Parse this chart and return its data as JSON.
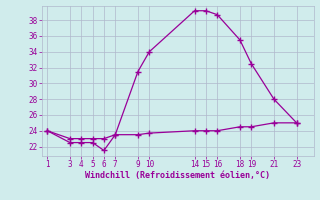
{
  "x": [
    1,
    3,
    4,
    5,
    6,
    7,
    9,
    10,
    14,
    15,
    16,
    18,
    19,
    21,
    23
  ],
  "y_main": [
    24,
    22.5,
    22.5,
    22.5,
    21.5,
    23.5,
    31.5,
    34,
    39.2,
    39.2,
    38.7,
    35.5,
    32.5,
    28,
    25
  ],
  "y_flat": [
    24,
    23,
    23,
    23,
    23,
    23.5,
    23.5,
    23.7,
    24,
    24,
    24,
    24.5,
    24.5,
    25,
    25
  ],
  "line_color": "#990099",
  "bg_color": "#d0ecec",
  "grid_color": "#b0b8cc",
  "xlabel": "Windchill (Refroidissement éolien,°C)",
  "xticks": [
    1,
    3,
    4,
    5,
    6,
    7,
    9,
    10,
    14,
    15,
    16,
    18,
    19,
    21,
    23
  ],
  "yticks": [
    22,
    24,
    26,
    28,
    30,
    32,
    34,
    36,
    38
  ],
  "ylim": [
    20.8,
    39.8
  ],
  "xlim": [
    0.5,
    24.5
  ]
}
